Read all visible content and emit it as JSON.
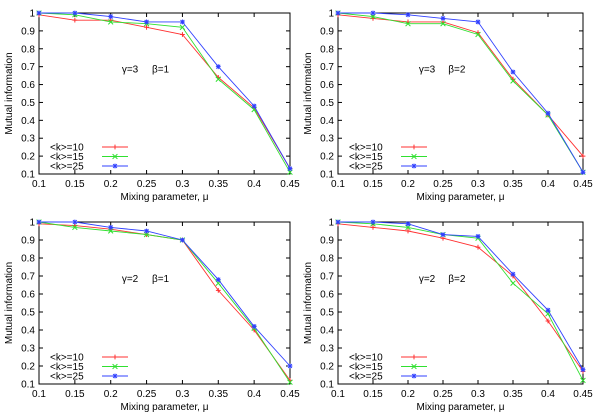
{
  "chart_data": [
    {
      "type": "line",
      "annotations": [
        "γ=3",
        "β=1"
      ],
      "xlabel": "Mixing parameter, μ",
      "ylabel": "Mutual information",
      "x": [
        0.1,
        0.15,
        0.2,
        0.25,
        0.3,
        0.35,
        0.4,
        0.45
      ],
      "x_tick_labels": [
        "0.1",
        "0.15",
        "0.2",
        "0.25",
        "0.3",
        "0.35",
        "0.4",
        "0.45"
      ],
      "y_ticks": [
        0.1,
        0.2,
        0.3,
        0.4,
        0.5,
        0.6,
        0.7,
        0.8,
        0.9,
        1
      ],
      "y_tick_labels": [
        "0.1",
        "0.2",
        "0.3",
        "0.4",
        "0.5",
        "0.6",
        "0.7",
        "0.8",
        "0.9",
        "1"
      ],
      "xlim": [
        0.1,
        0.45
      ],
      "ylim": [
        0.1,
        1
      ],
      "grid": false,
      "legend_position": "bottom-left",
      "series": [
        {
          "name": "<k>=10",
          "color": "#ff3030",
          "values": [
            0.99,
            0.96,
            0.96,
            0.92,
            0.88,
            0.64,
            0.47,
            0.13
          ]
        },
        {
          "name": "<k>=15",
          "color": "#30e030",
          "values": [
            1.0,
            0.99,
            0.95,
            0.94,
            0.92,
            0.63,
            0.46,
            0.11
          ]
        },
        {
          "name": "<k>=25",
          "color": "#3040ff",
          "values": [
            1.0,
            1.0,
            0.98,
            0.95,
            0.95,
            0.7,
            0.48,
            0.13
          ]
        }
      ]
    },
    {
      "type": "line",
      "annotations": [
        "γ=3",
        "β=2"
      ],
      "xlabel": "Mixing parameter, μ",
      "ylabel": "Mutual information",
      "x": [
        0.1,
        0.15,
        0.2,
        0.25,
        0.3,
        0.35,
        0.4,
        0.45
      ],
      "x_tick_labels": [
        "0.1",
        "0.15",
        "0.2",
        "0.25",
        "0.3",
        "0.35",
        "0.4",
        "0.45"
      ],
      "y_ticks": [
        0.1,
        0.2,
        0.3,
        0.4,
        0.5,
        0.6,
        0.7,
        0.8,
        0.9,
        1
      ],
      "y_tick_labels": [
        "0.1",
        "0.2",
        "0.3",
        "0.4",
        "0.5",
        "0.6",
        "0.7",
        "0.8",
        "0.9",
        "1"
      ],
      "xlim": [
        0.1,
        0.45
      ],
      "ylim": [
        0.1,
        1
      ],
      "grid": false,
      "legend_position": "bottom-left",
      "series": [
        {
          "name": "<k>=10",
          "color": "#ff3030",
          "values": [
            0.99,
            0.97,
            0.95,
            0.95,
            0.89,
            0.63,
            0.43,
            0.2
          ]
        },
        {
          "name": "<k>=15",
          "color": "#30e030",
          "values": [
            1.0,
            0.98,
            0.94,
            0.94,
            0.88,
            0.62,
            0.43,
            0.11
          ]
        },
        {
          "name": "<k>=25",
          "color": "#3040ff",
          "values": [
            1.0,
            1.0,
            0.99,
            0.97,
            0.95,
            0.67,
            0.44,
            0.11
          ]
        }
      ]
    },
    {
      "type": "line",
      "annotations": [
        "γ=2",
        "β=1"
      ],
      "xlabel": "Mixing parameter, μ",
      "ylabel": "Mutual information",
      "x": [
        0.1,
        0.15,
        0.2,
        0.25,
        0.3,
        0.35,
        0.4,
        0.45
      ],
      "x_tick_labels": [
        "0.1",
        "0.15",
        "0.2",
        "0.25",
        "0.3",
        "0.35",
        "0.4",
        "0.45"
      ],
      "y_ticks": [
        0.1,
        0.2,
        0.3,
        0.4,
        0.5,
        0.6,
        0.7,
        0.8,
        0.9,
        1
      ],
      "y_tick_labels": [
        "0.1",
        "0.2",
        "0.3",
        "0.4",
        "0.5",
        "0.6",
        "0.7",
        "0.8",
        "0.9",
        "1"
      ],
      "xlim": [
        0.1,
        0.45
      ],
      "ylim": [
        0.1,
        1
      ],
      "grid": false,
      "legend_position": "bottom-left",
      "series": [
        {
          "name": "<k>=10",
          "color": "#ff3030",
          "values": [
            0.99,
            0.98,
            0.96,
            0.93,
            0.9,
            0.62,
            0.4,
            0.12
          ]
        },
        {
          "name": "<k>=15",
          "color": "#30e030",
          "values": [
            1.0,
            0.97,
            0.95,
            0.93,
            0.9,
            0.66,
            0.41,
            0.11
          ]
        },
        {
          "name": "<k>=25",
          "color": "#3040ff",
          "values": [
            1.0,
            1.0,
            0.97,
            0.95,
            0.9,
            0.68,
            0.42,
            0.2
          ]
        }
      ]
    },
    {
      "type": "line",
      "annotations": [
        "γ=2",
        "β=2"
      ],
      "xlabel": "Mixing parameter, μ",
      "ylabel": "Mutual information",
      "x": [
        0.1,
        0.15,
        0.2,
        0.25,
        0.3,
        0.35,
        0.4,
        0.45
      ],
      "x_tick_labels": [
        "0.1",
        "0.15",
        "0.2",
        "0.25",
        "0.3",
        "0.35",
        "0.4",
        "0.45"
      ],
      "y_ticks": [
        0.1,
        0.2,
        0.3,
        0.4,
        0.5,
        0.6,
        0.7,
        0.8,
        0.9,
        1
      ],
      "y_tick_labels": [
        "0.1",
        "0.2",
        "0.3",
        "0.4",
        "0.5",
        "0.6",
        "0.7",
        "0.8",
        "0.9",
        "1"
      ],
      "xlim": [
        0.1,
        0.45
      ],
      "ylim": [
        0.1,
        1
      ],
      "grid": false,
      "legend_position": "bottom-left",
      "series": [
        {
          "name": "<k>=10",
          "color": "#ff3030",
          "values": [
            0.99,
            0.97,
            0.95,
            0.91,
            0.86,
            0.7,
            0.45,
            0.17
          ]
        },
        {
          "name": "<k>=15",
          "color": "#30e030",
          "values": [
            1.0,
            0.99,
            0.97,
            0.93,
            0.91,
            0.66,
            0.49,
            0.12
          ]
        },
        {
          "name": "<k>=25",
          "color": "#3040ff",
          "values": [
            1.0,
            1.0,
            0.99,
            0.93,
            0.92,
            0.71,
            0.51,
            0.18
          ]
        }
      ]
    }
  ]
}
